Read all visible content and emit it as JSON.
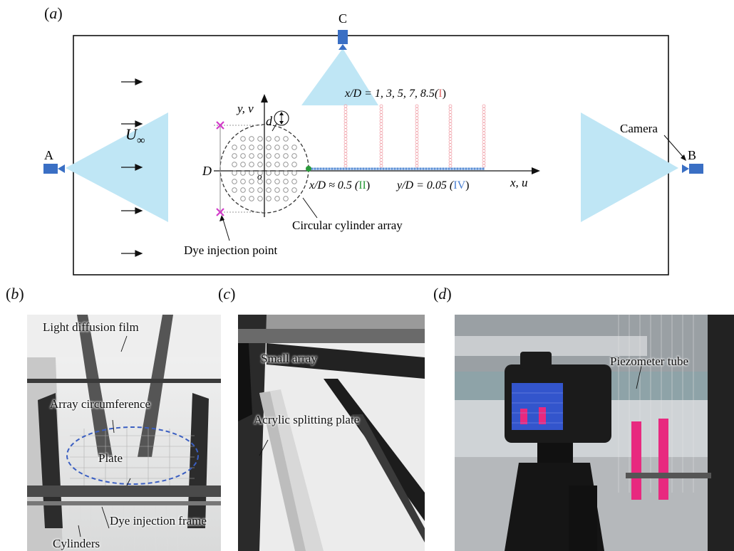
{
  "panel_a": {
    "label": "a",
    "camera_a": "A",
    "camera_b": "B",
    "camera_c": "C",
    "camera_label": "Camera",
    "freestream": "U",
    "freestream_sub": "∞",
    "diameter": "D",
    "small_d": "d",
    "origin": "o",
    "axis_y": "y, v",
    "axis_x": "x, u",
    "profile_lines_label_prefix": "x/D = 1, 3, 5, 7, 8.5(",
    "profile_lines_roman": "I",
    "profile_lines_suffix": ")",
    "point_ii_prefix": "x/D ≈ 0.5 (",
    "point_ii_roman": "II",
    "point_ii_suffix": ")",
    "line_iv_prefix": "y/D = 0.05 (",
    "line_iv_roman": "IV",
    "line_iv_suffix": ")",
    "array_label": "Circular cylinder array",
    "dye_label": "Dye injection point",
    "colors": {
      "camera": "#3a6fc4",
      "field": "#bfe6f5",
      "profile": "#f0a0a8",
      "wake_line": "#5b8fd6",
      "dye": "#d23bc9",
      "point_ii": "#2a9a3a"
    }
  },
  "panel_b": {
    "label": "b",
    "annotations": [
      "Light diffusion film",
      "Array circumference",
      "Plate",
      "Dye injection frame",
      "Cylinders"
    ]
  },
  "panel_c": {
    "label": "c",
    "annotations": [
      "Small array",
      "Acrylic splitting plate"
    ]
  },
  "panel_d": {
    "label": "d",
    "annotations": [
      "Piezometer tube"
    ]
  }
}
